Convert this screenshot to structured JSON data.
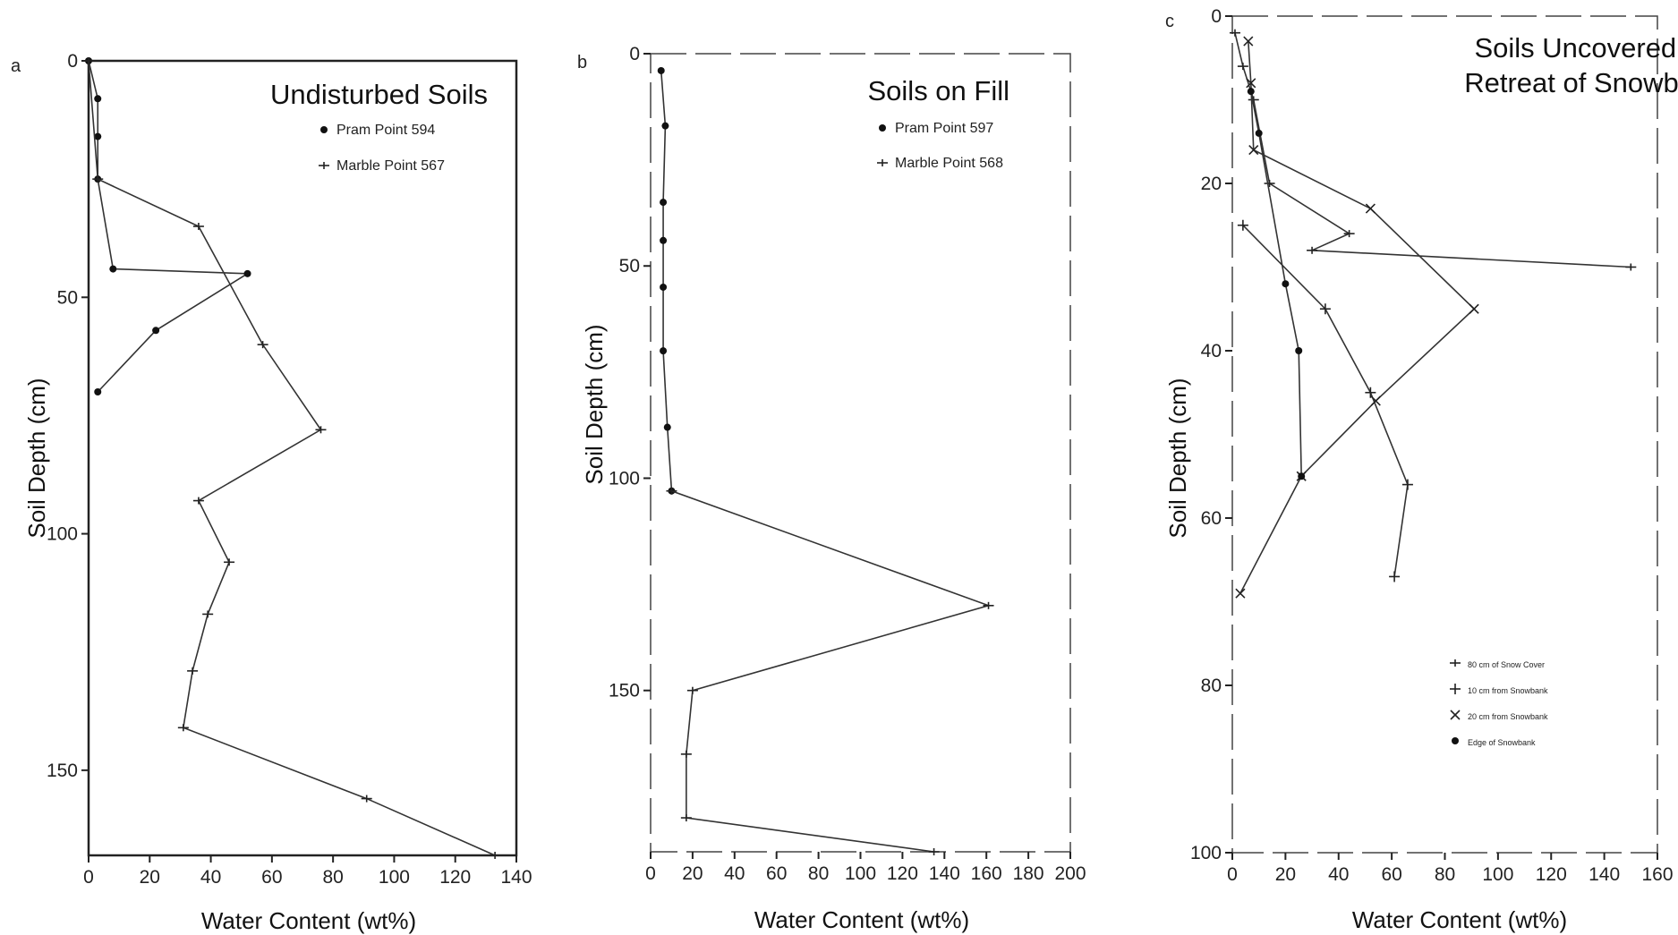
{
  "chart_data": [
    {
      "panel": "a",
      "type": "line",
      "title": "Undisturbed Soils",
      "xlabel": "Water Content (wt%)",
      "ylabel": "Soil Depth (cm)",
      "xlim": [
        0,
        140
      ],
      "ylim": [
        0,
        168
      ],
      "y_inverted": true,
      "xticks": [
        0,
        20,
        40,
        60,
        80,
        100,
        120,
        140
      ],
      "yticks": [
        0,
        50,
        100,
        150
      ],
      "legend_position": "top-right",
      "series": [
        {
          "name": "Pram Point 594",
          "marker": "dot",
          "x": [
            0,
            3,
            3,
            3,
            8,
            52,
            22,
            3
          ],
          "y": [
            0,
            8,
            16,
            25,
            44,
            45,
            57,
            70
          ]
        },
        {
          "name": "Marble Point 567",
          "marker": "tick",
          "x": [
            0,
            3,
            36,
            57,
            76,
            36,
            46,
            39,
            34,
            31,
            91,
            133
          ],
          "y": [
            0,
            25,
            35,
            60,
            78,
            93,
            106,
            117,
            129,
            141,
            156,
            168
          ]
        }
      ]
    },
    {
      "panel": "b",
      "type": "line",
      "title": "Soils on Fill",
      "xlabel": "Water Content (wt%)",
      "ylabel": "Soil Depth (cm)",
      "xlim": [
        0,
        200
      ],
      "ylim": [
        0,
        188
      ],
      "y_inverted": true,
      "xticks": [
        0,
        20,
        40,
        60,
        80,
        100,
        120,
        140,
        160,
        180,
        200
      ],
      "yticks": [
        0,
        50,
        100,
        150
      ],
      "legend_position": "top-right",
      "series": [
        {
          "name": "Pram Point 597",
          "marker": "dot",
          "x": [
            5,
            7,
            6,
            6,
            6,
            6,
            8,
            10
          ],
          "y": [
            4,
            17,
            35,
            44,
            55,
            70,
            88,
            103
          ]
        },
        {
          "name": "Marble Point 568",
          "marker": "tick",
          "x": [
            10,
            161,
            20,
            17,
            17,
            135
          ],
          "y": [
            103,
            130,
            150,
            165,
            180,
            188
          ]
        }
      ]
    },
    {
      "panel": "c",
      "type": "line",
      "title": "Soils Uncovered by Retreat of Snowbank",
      "xlabel": "Water Content (wt%)",
      "ylabel": "Soil Depth (cm)",
      "xlim": [
        0,
        160
      ],
      "ylim": [
        0,
        100
      ],
      "y_inverted": true,
      "xticks": [
        0,
        20,
        40,
        60,
        80,
        100,
        120,
        140,
        160
      ],
      "yticks": [
        0,
        20,
        40,
        60,
        80,
        100
      ],
      "legend_position": "bottom-right",
      "series": [
        {
          "name": "80 cm of Snow Cover",
          "marker": "tick",
          "x": [
            1,
            4,
            8,
            14,
            44,
            30,
            150
          ],
          "y": [
            2,
            6,
            10,
            20,
            26,
            28,
            30
          ]
        },
        {
          "name": "10 cm from Snowbank",
          "marker": "plus",
          "x": [
            4,
            35,
            52,
            66,
            61
          ],
          "y": [
            25,
            35,
            45,
            56,
            67
          ]
        },
        {
          "name": "20 cm from Snowbank",
          "marker": "x",
          "x": [
            6,
            7,
            8,
            52,
            91,
            54,
            26,
            3
          ],
          "y": [
            3,
            8,
            16,
            23,
            35,
            46,
            55,
            69
          ]
        },
        {
          "name": "Edge of Snowbank",
          "marker": "dot",
          "x": [
            7,
            10,
            20,
            25,
            26
          ],
          "y": [
            9,
            14,
            32,
            40,
            55
          ]
        }
      ]
    }
  ],
  "panels": {
    "a": {
      "letter": "a"
    },
    "b": {
      "letter": "b"
    },
    "c": {
      "letter": "c",
      "title_line1": "Soils Uncovered by",
      "title_line2": "Retreat of Snowbank"
    }
  }
}
